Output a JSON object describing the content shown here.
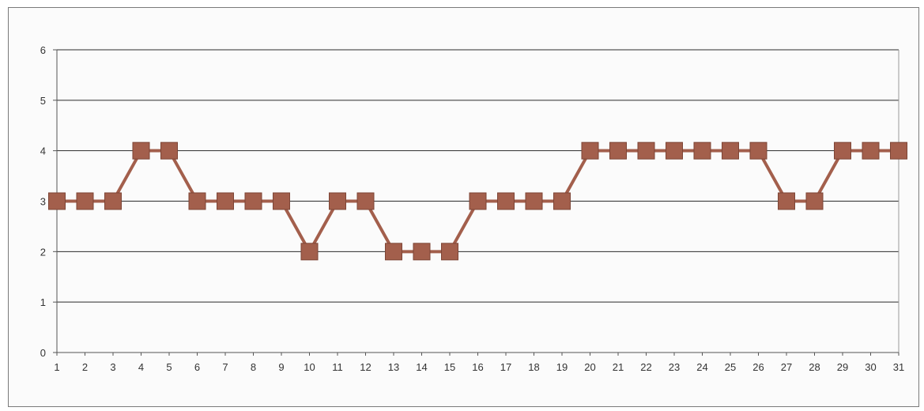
{
  "chart_data": {
    "type": "line",
    "title": "",
    "xlabel": "",
    "ylabel": "",
    "x": [
      1,
      2,
      3,
      4,
      5,
      6,
      7,
      8,
      9,
      10,
      11,
      12,
      13,
      14,
      15,
      16,
      17,
      18,
      19,
      20,
      21,
      22,
      23,
      24,
      25,
      26,
      27,
      28,
      29,
      30,
      31
    ],
    "series": [
      {
        "values": [
          3,
          3,
          3,
          4,
          4,
          3,
          3,
          3,
          3,
          2,
          3,
          3,
          2,
          2,
          2,
          3,
          3,
          3,
          3,
          4,
          4,
          4,
          4,
          4,
          4,
          4,
          3,
          3,
          4,
          4,
          4
        ],
        "color": "#a35f4c",
        "marker": "square"
      }
    ],
    "ylim": [
      0,
      6
    ],
    "yticks": [
      0,
      1,
      2,
      3,
      4,
      5,
      6
    ],
    "xlim": [
      1,
      31
    ],
    "grid": "horizontal",
    "legend": "none"
  }
}
